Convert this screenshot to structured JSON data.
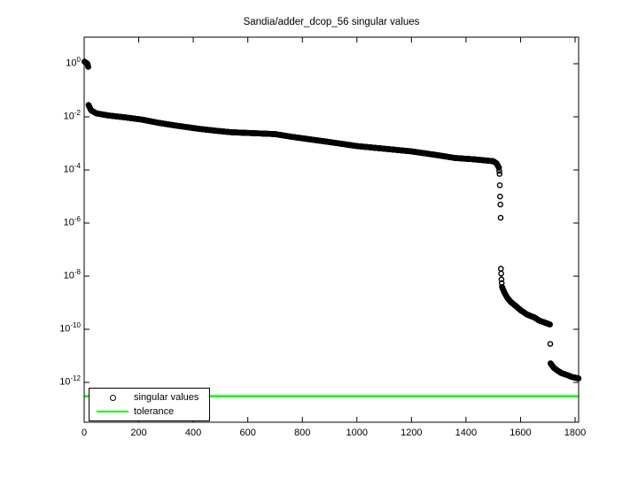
{
  "title": "Sandia/adder_dcop_56 singular values",
  "legend": {
    "items": [
      {
        "label": "singular values",
        "marker": "circle-marker"
      },
      {
        "label": "tolerance",
        "marker": "line-marker"
      }
    ]
  },
  "colors": {
    "background": "#ffffff",
    "axis": "#000000",
    "text": "#000000",
    "marker": "#000000",
    "tolerance": "#00ff00"
  },
  "chart_data": {
    "type": "scatter",
    "title": "Sandia/adder_dcop_56 singular values",
    "xlabel": "",
    "ylabel": "",
    "grid": false,
    "legend_position": "southwest-inside",
    "xlim": [
      0,
      1813
    ],
    "ylim": [
      3.16e-14,
      10
    ],
    "xticks": [
      0,
      200,
      400,
      600,
      800,
      1000,
      1200,
      1400,
      1600,
      1800
    ],
    "ytick_exponents": [
      0,
      -2,
      -4,
      -6,
      -8,
      -10,
      -12
    ],
    "marker": {
      "shape": "open-circle",
      "radius": 2.6,
      "stroke_width": 1.4,
      "color": "#000000"
    },
    "tolerance": {
      "value": 3e-13,
      "color": "#00ff00",
      "label": "tolerance"
    },
    "series": [
      {
        "name": "singular values",
        "n_points": 1813,
        "representation": "anchors_log10",
        "comment_visible_shape": "sigma ~1 for first ~15 indices, dense band from 1e-2 declining to ~1.2e-4 near index 1520, isolated values stepping down to ~1e-8, curved tail to ~1.5e-10 near index 1710, final drop to ~1.4e-12 through index 1813",
        "anchors_log10": [
          [
            1,
            0.08
          ],
          [
            12,
            0.0
          ],
          [
            15,
            -0.12
          ],
          [
            16,
            -1.55
          ],
          [
            25,
            -1.75
          ],
          [
            45,
            -1.87
          ],
          [
            90,
            -1.95
          ],
          [
            150,
            -2.02
          ],
          [
            210,
            -2.1
          ],
          [
            270,
            -2.22
          ],
          [
            330,
            -2.32
          ],
          [
            420,
            -2.45
          ],
          [
            480,
            -2.52
          ],
          [
            540,
            -2.58
          ],
          [
            700,
            -2.65
          ],
          [
            760,
            -2.75
          ],
          [
            830,
            -2.85
          ],
          [
            900,
            -2.95
          ],
          [
            1000,
            -3.1
          ],
          [
            1100,
            -3.2
          ],
          [
            1200,
            -3.3
          ],
          [
            1300,
            -3.45
          ],
          [
            1360,
            -3.55
          ],
          [
            1430,
            -3.6
          ],
          [
            1500,
            -3.67
          ],
          [
            1512,
            -3.75
          ],
          [
            1521,
            -3.92
          ],
          [
            1523,
            -4.15
          ],
          [
            1525,
            -5.0
          ],
          [
            1526,
            -5.3
          ],
          [
            1527,
            -5.8
          ],
          [
            1528,
            -7.72
          ],
          [
            1529,
            -7.9
          ],
          [
            1530,
            -8.12
          ],
          [
            1532,
            -8.4
          ],
          [
            1540,
            -8.6
          ],
          [
            1552,
            -8.82
          ],
          [
            1565,
            -8.98
          ],
          [
            1580,
            -9.1
          ],
          [
            1600,
            -9.28
          ],
          [
            1625,
            -9.45
          ],
          [
            1650,
            -9.55
          ],
          [
            1670,
            -9.68
          ],
          [
            1690,
            -9.75
          ],
          [
            1708,
            -9.82
          ],
          [
            1710,
            -11.28
          ],
          [
            1722,
            -11.45
          ],
          [
            1735,
            -11.55
          ],
          [
            1750,
            -11.65
          ],
          [
            1770,
            -11.72
          ],
          [
            1790,
            -11.8
          ],
          [
            1800,
            -11.82
          ],
          [
            1813,
            -11.85
          ]
        ]
      }
    ]
  }
}
